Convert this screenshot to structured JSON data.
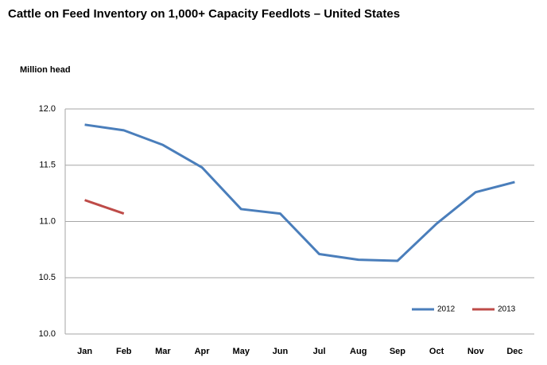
{
  "chart_data": {
    "type": "line",
    "title": "Cattle on Feed Inventory on 1,000+ Capacity Feedlots – United States",
    "y_axis_label": "Million head",
    "categories": [
      "Jan",
      "Feb",
      "Mar",
      "Apr",
      "May",
      "Jun",
      "Jul",
      "Aug",
      "Sep",
      "Oct",
      "Nov",
      "Dec"
    ],
    "series": [
      {
        "name": "2012",
        "color": "#4a7ebb",
        "values": [
          11.86,
          11.81,
          11.68,
          11.48,
          11.11,
          11.07,
          10.71,
          10.66,
          10.65,
          10.98,
          11.26,
          11.35
        ]
      },
      {
        "name": "2013",
        "color": "#be4b48",
        "values": [
          11.19,
          11.07,
          null,
          null,
          null,
          null,
          null,
          null,
          null,
          null,
          null,
          null
        ]
      }
    ],
    "ylim": [
      10.0,
      12.0
    ],
    "yticks": [
      {
        "value": 10.0,
        "label": "10.0"
      },
      {
        "value": 10.5,
        "label": "10.5"
      },
      {
        "value": 11.0,
        "label": "11.0"
      },
      {
        "value": 11.5,
        "label": "11.5"
      },
      {
        "value": 12.0,
        "label": "12.0"
      }
    ],
    "grid": true,
    "legend": "bottom-right"
  }
}
